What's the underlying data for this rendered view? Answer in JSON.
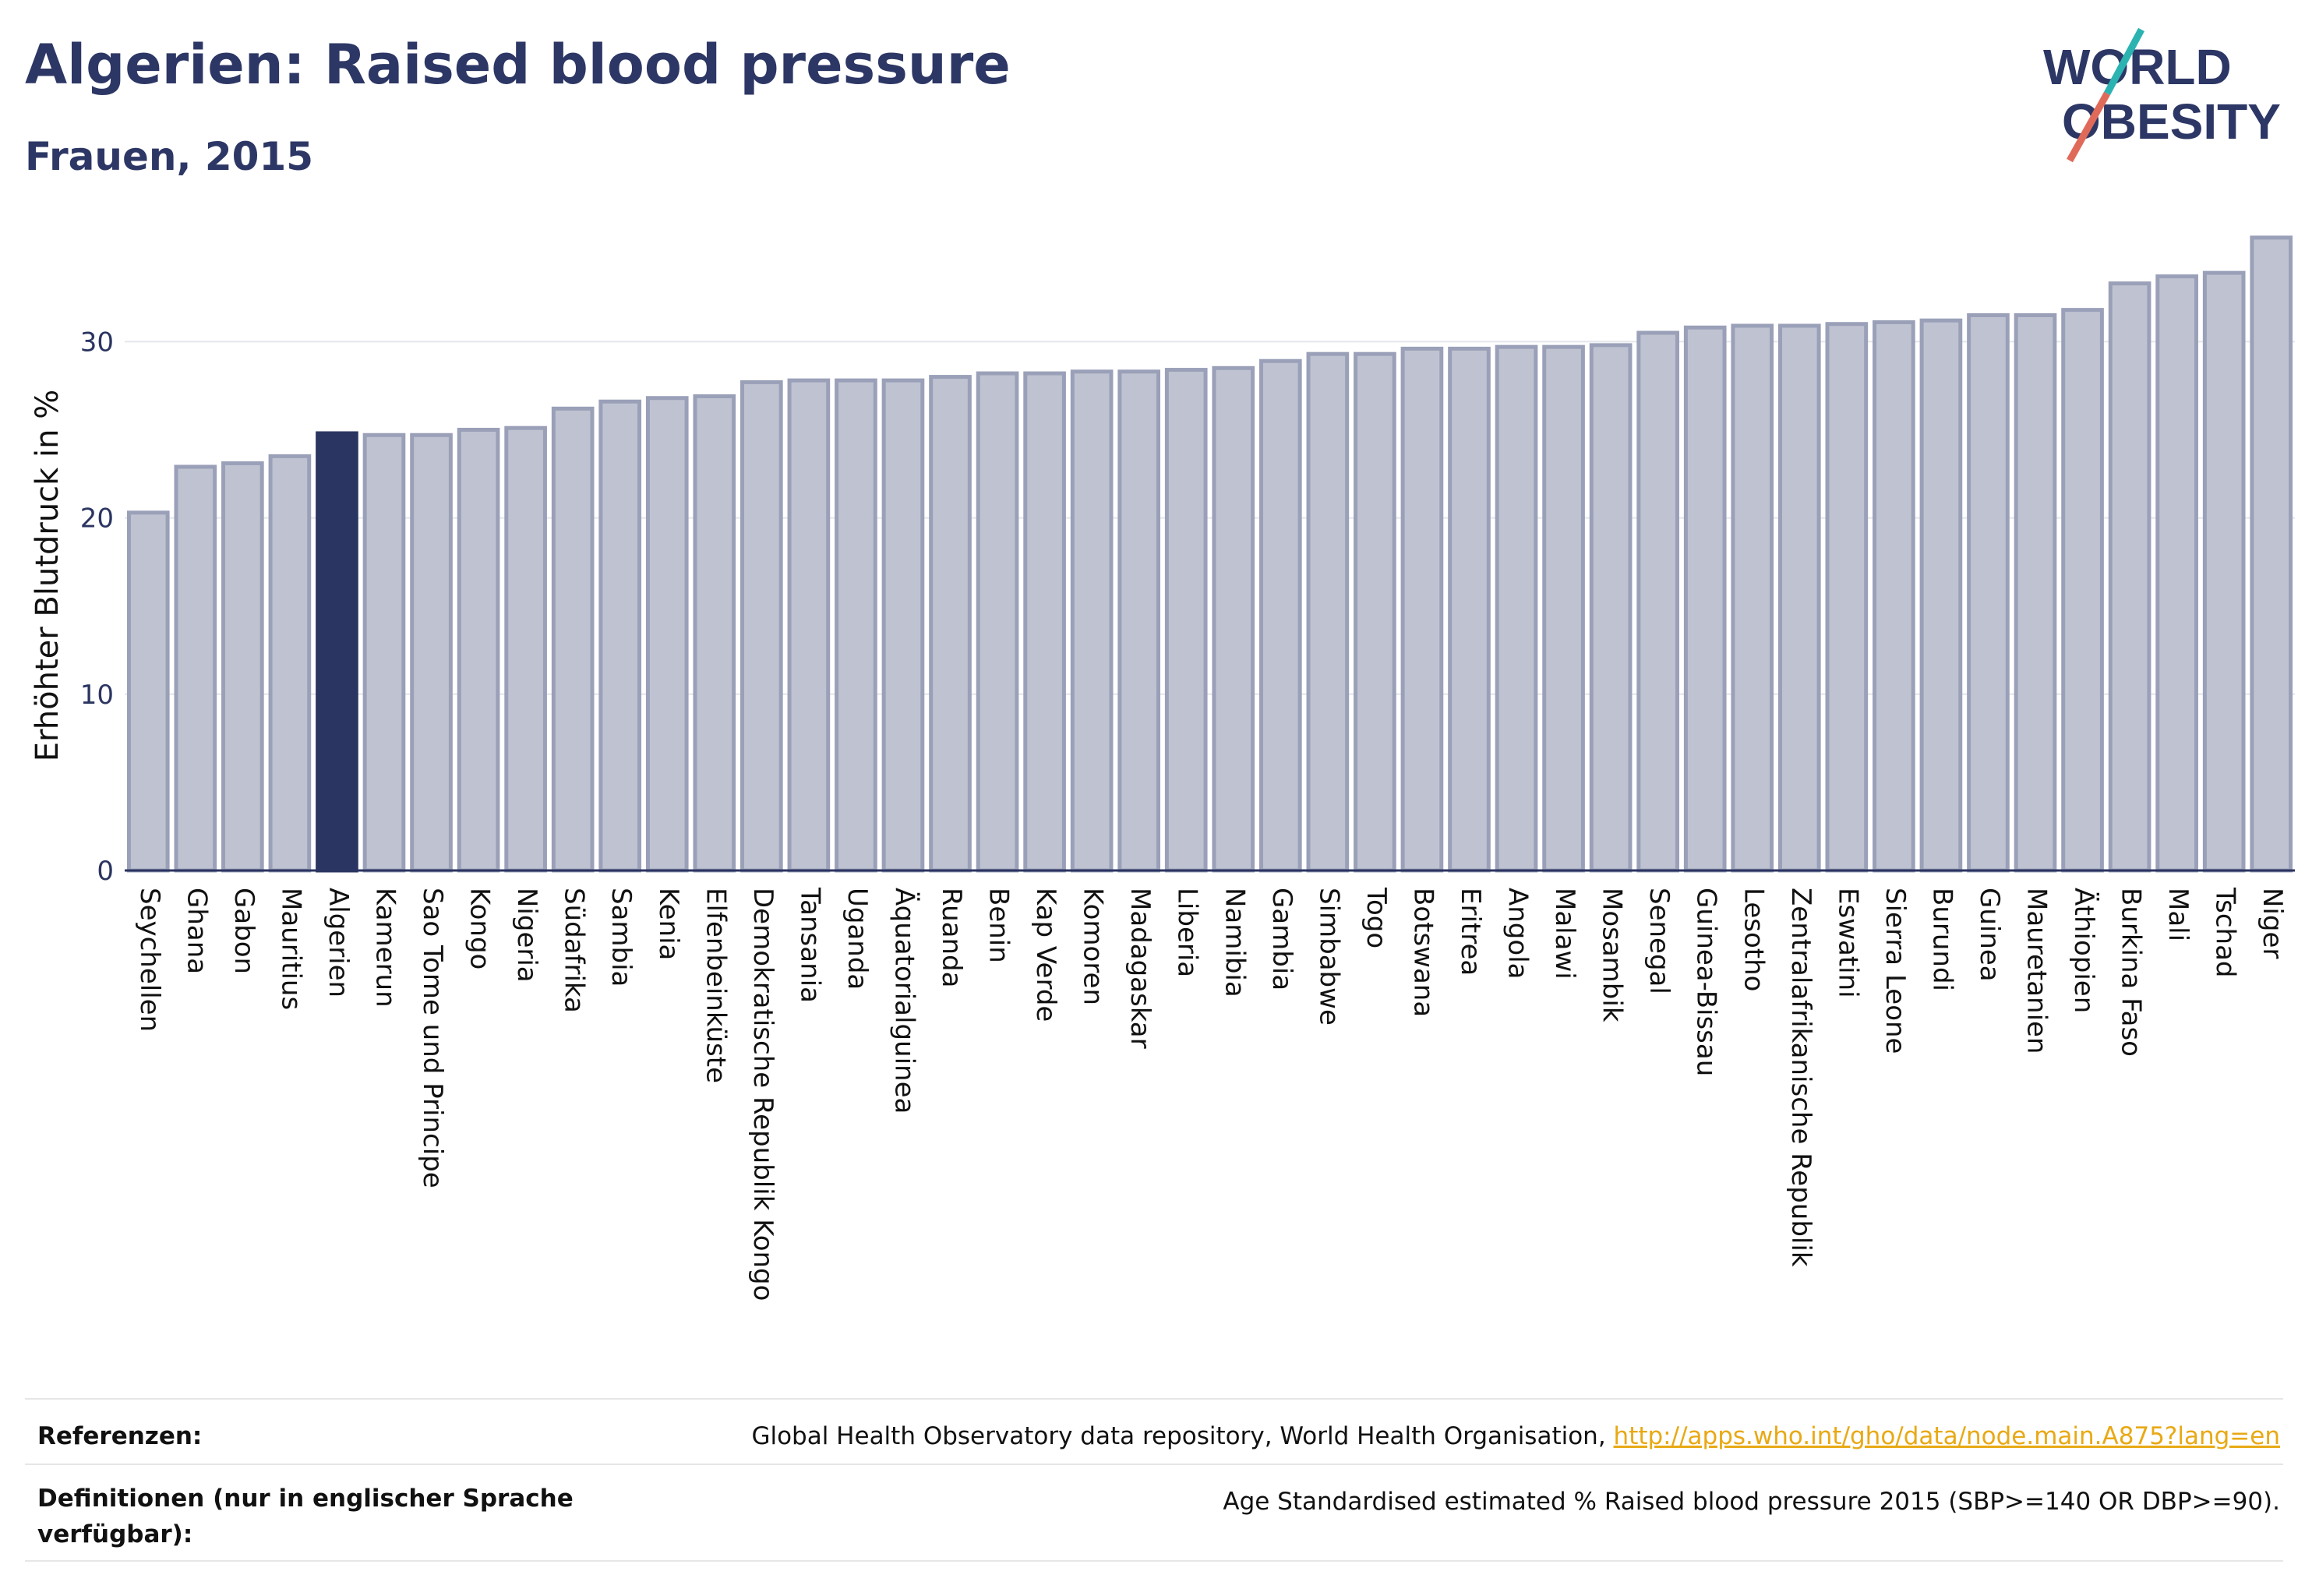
{
  "header": {
    "title": "Algerien: Raised blood pressure",
    "subtitle": "Frauen, 2015"
  },
  "logo": {
    "line1": "WORLD",
    "line2": "OBESITY"
  },
  "colors": {
    "bar": "#bfc3d1",
    "bar_edge": "#9aa0b8",
    "highlight": "#2b3561",
    "text": "#2b3561"
  },
  "chart_data": {
    "type": "bar",
    "ylabel": "Erhöhter Blutdruck in %",
    "ylim": [
      0,
      37
    ],
    "yticks": [
      0,
      10,
      20,
      30
    ],
    "highlight": "Algerien",
    "grid": true,
    "categories": [
      "Seychellen",
      "Ghana",
      "Gabon",
      "Mauritius",
      "Algerien",
      "Kamerun",
      "Sao Tome und Principe",
      "Kongo",
      "Nigeria",
      "Südafrika",
      "Sambia",
      "Kenia",
      "Elfenbeinküste",
      "Demokratische Republik Kongo",
      "Tansania",
      "Uganda",
      "Äquatorialguinea",
      "Ruanda",
      "Benin",
      "Kap Verde",
      "Komoren",
      "Madagaskar",
      "Liberia",
      "Namibia",
      "Gambia",
      "Simbabwe",
      "Togo",
      "Botswana",
      "Eritrea",
      "Angola",
      "Malawi",
      "Mosambik",
      "Senegal",
      "Guinea-Bissau",
      "Lesotho",
      "Zentralafrikanische Republik",
      "Eswatini",
      "Sierra Leone",
      "Burundi",
      "Guinea",
      "Mauretanien",
      "Äthiopien",
      "Burkina Faso",
      "Mali",
      "Tschad",
      "Niger"
    ],
    "values": [
      20.3,
      22.9,
      23.1,
      23.5,
      24.8,
      24.7,
      24.7,
      25.0,
      25.1,
      26.2,
      26.6,
      26.8,
      26.9,
      27.7,
      27.8,
      27.8,
      27.8,
      28.0,
      28.2,
      28.2,
      28.3,
      28.3,
      28.4,
      28.5,
      28.9,
      29.3,
      29.3,
      29.6,
      29.6,
      29.7,
      29.7,
      29.8,
      30.5,
      30.8,
      30.9,
      30.9,
      31.0,
      31.1,
      31.2,
      31.5,
      31.5,
      31.8,
      33.3,
      33.7,
      33.9,
      35.9
    ]
  },
  "footer": {
    "references_label": "Referenzen:",
    "references_text": "Global Health Observatory data repository, World Health Organisation, ",
    "references_link": "http://apps.who.int/gho/data/node.main.A875?lang=en",
    "definitions_label": "Definitionen (nur in englischer Sprache verfügbar):",
    "definitions_text": "Age Standardised estimated % Raised blood pressure 2015 (SBP>=140 OR DBP>=90)."
  }
}
